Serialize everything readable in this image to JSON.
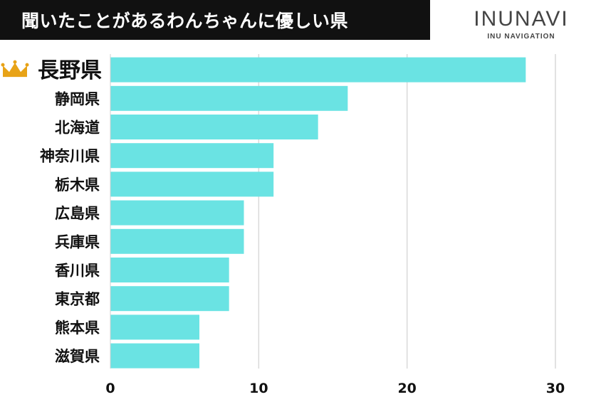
{
  "header": {
    "title": "聞いたことがあるわんちゃんに優しい県",
    "brand_name": "INUNAVI",
    "brand_sub": "INU NAVIGATION"
  },
  "colors": {
    "bar": "#6ae3e3",
    "grid": "#d9d9d9",
    "crown": "#e8a317"
  },
  "icons": {
    "top_marker": "crown-icon"
  },
  "chart_data": {
    "type": "bar",
    "orientation": "horizontal",
    "categories": [
      "長野県",
      "静岡県",
      "北海道",
      "神奈川県",
      "栃木県",
      "広島県",
      "兵庫県",
      "香川県",
      "東京都",
      "熊本県",
      "滋賀県"
    ],
    "values": [
      28,
      16,
      14,
      11,
      11,
      9,
      9,
      8,
      8,
      6,
      6
    ],
    "xlim": [
      0,
      30
    ],
    "xticks": [
      0,
      10,
      20,
      30
    ],
    "grid": true,
    "title": "",
    "xlabel": "",
    "ylabel": ""
  }
}
